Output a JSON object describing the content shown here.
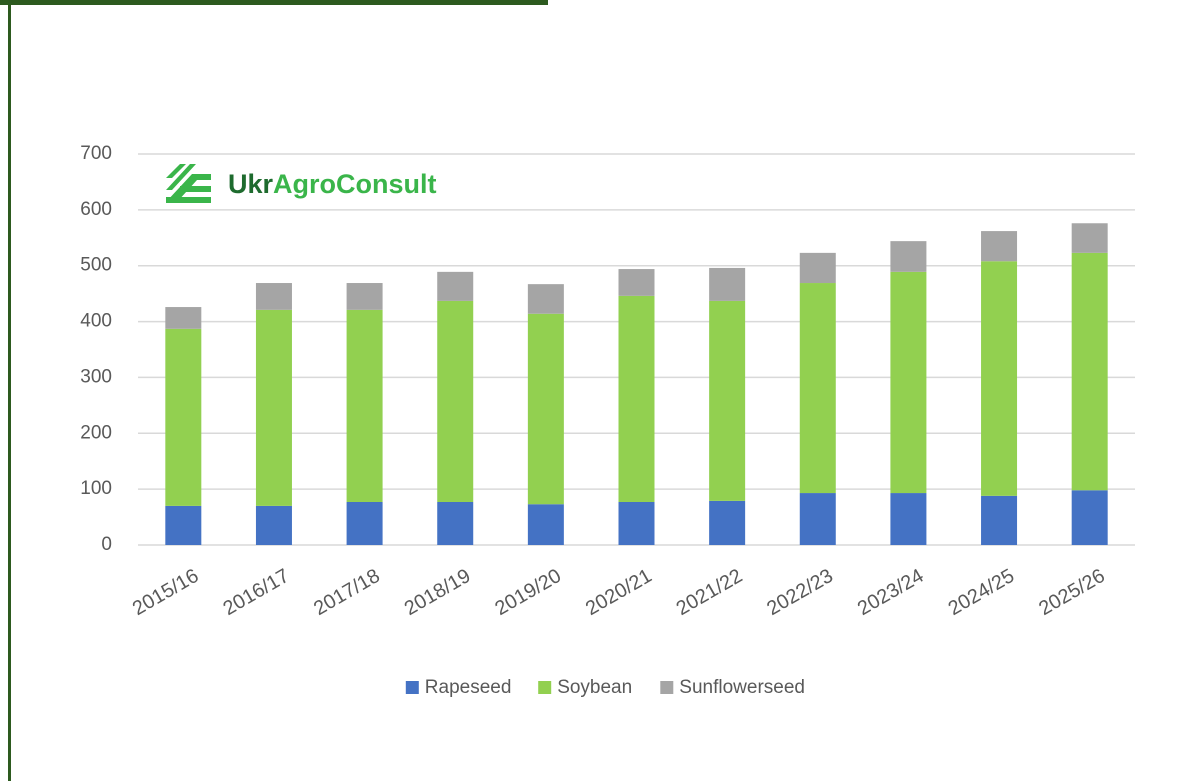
{
  "logo": [
    "Ukr",
    "Agro",
    "Consult"
  ],
  "chart_data": {
    "type": "stacked_bar",
    "categories": [
      "2015/16",
      "2016/17",
      "2017/18",
      "2018/19",
      "2019/20",
      "2020/21",
      "2021/22",
      "2022/23",
      "2023/24",
      "2024/25",
      "2025/26"
    ],
    "series": [
      {
        "name": "Rapeseed",
        "color": "#4472c4",
        "values": [
          70,
          70,
          77,
          77,
          73,
          77,
          79,
          93,
          93,
          88,
          98
        ]
      },
      {
        "name": "Soybean",
        "color": "#92d050",
        "values": [
          317,
          351,
          344,
          360,
          341,
          369,
          358,
          376,
          396,
          420,
          425
        ]
      },
      {
        "name": "Sunflowerseed",
        "color": "#a5a5a5",
        "values": [
          39,
          48,
          48,
          52,
          53,
          48,
          59,
          54,
          55,
          54,
          53
        ]
      }
    ],
    "ylim": [
      0,
      700
    ],
    "yticks": [
      0,
      100,
      200,
      300,
      400,
      500,
      600,
      700
    ],
    "grid": true,
    "legend": "bottom"
  }
}
